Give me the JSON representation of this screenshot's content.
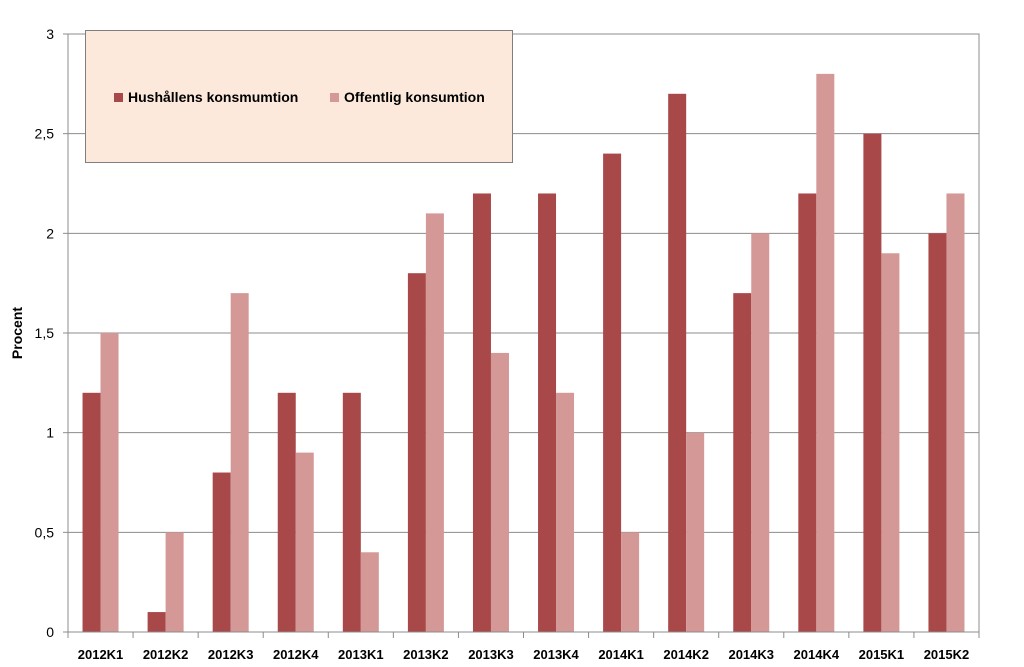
{
  "chart_data": {
    "type": "bar",
    "title": "",
    "xlabel": "",
    "ylabel": "Procent",
    "ylim": [
      0,
      3
    ],
    "yticks": [
      0,
      0.5,
      1,
      1.5,
      2,
      2.5,
      3
    ],
    "ytick_labels": [
      "0",
      "0,5",
      "1",
      "1,5",
      "2",
      "2,5",
      "3"
    ],
    "grid": true,
    "legend_placement": "top-left",
    "categories": [
      "2012K1",
      "2012K2",
      "2012K3",
      "2012K4",
      "2013K1",
      "2013K2",
      "2013K3",
      "2013K4",
      "2014K1",
      "2014K2",
      "2014K3",
      "2014K4",
      "2015K1",
      "2015K2"
    ],
    "series": [
      {
        "name": "Hushållens konsmumtion",
        "color": "#a84848",
        "values": [
          1.2,
          0.1,
          0.8,
          1.2,
          1.2,
          1.8,
          2.2,
          2.2,
          2.4,
          2.7,
          1.7,
          2.2,
          2.5,
          2.0
        ]
      },
      {
        "name": "Offentlig konsumtion",
        "color": "#d49896",
        "values": [
          1.5,
          0.5,
          1.7,
          0.9,
          0.4,
          2.1,
          1.4,
          1.2,
          0.5,
          1.0,
          2.0,
          2.8,
          1.9,
          2.2
        ]
      }
    ]
  }
}
